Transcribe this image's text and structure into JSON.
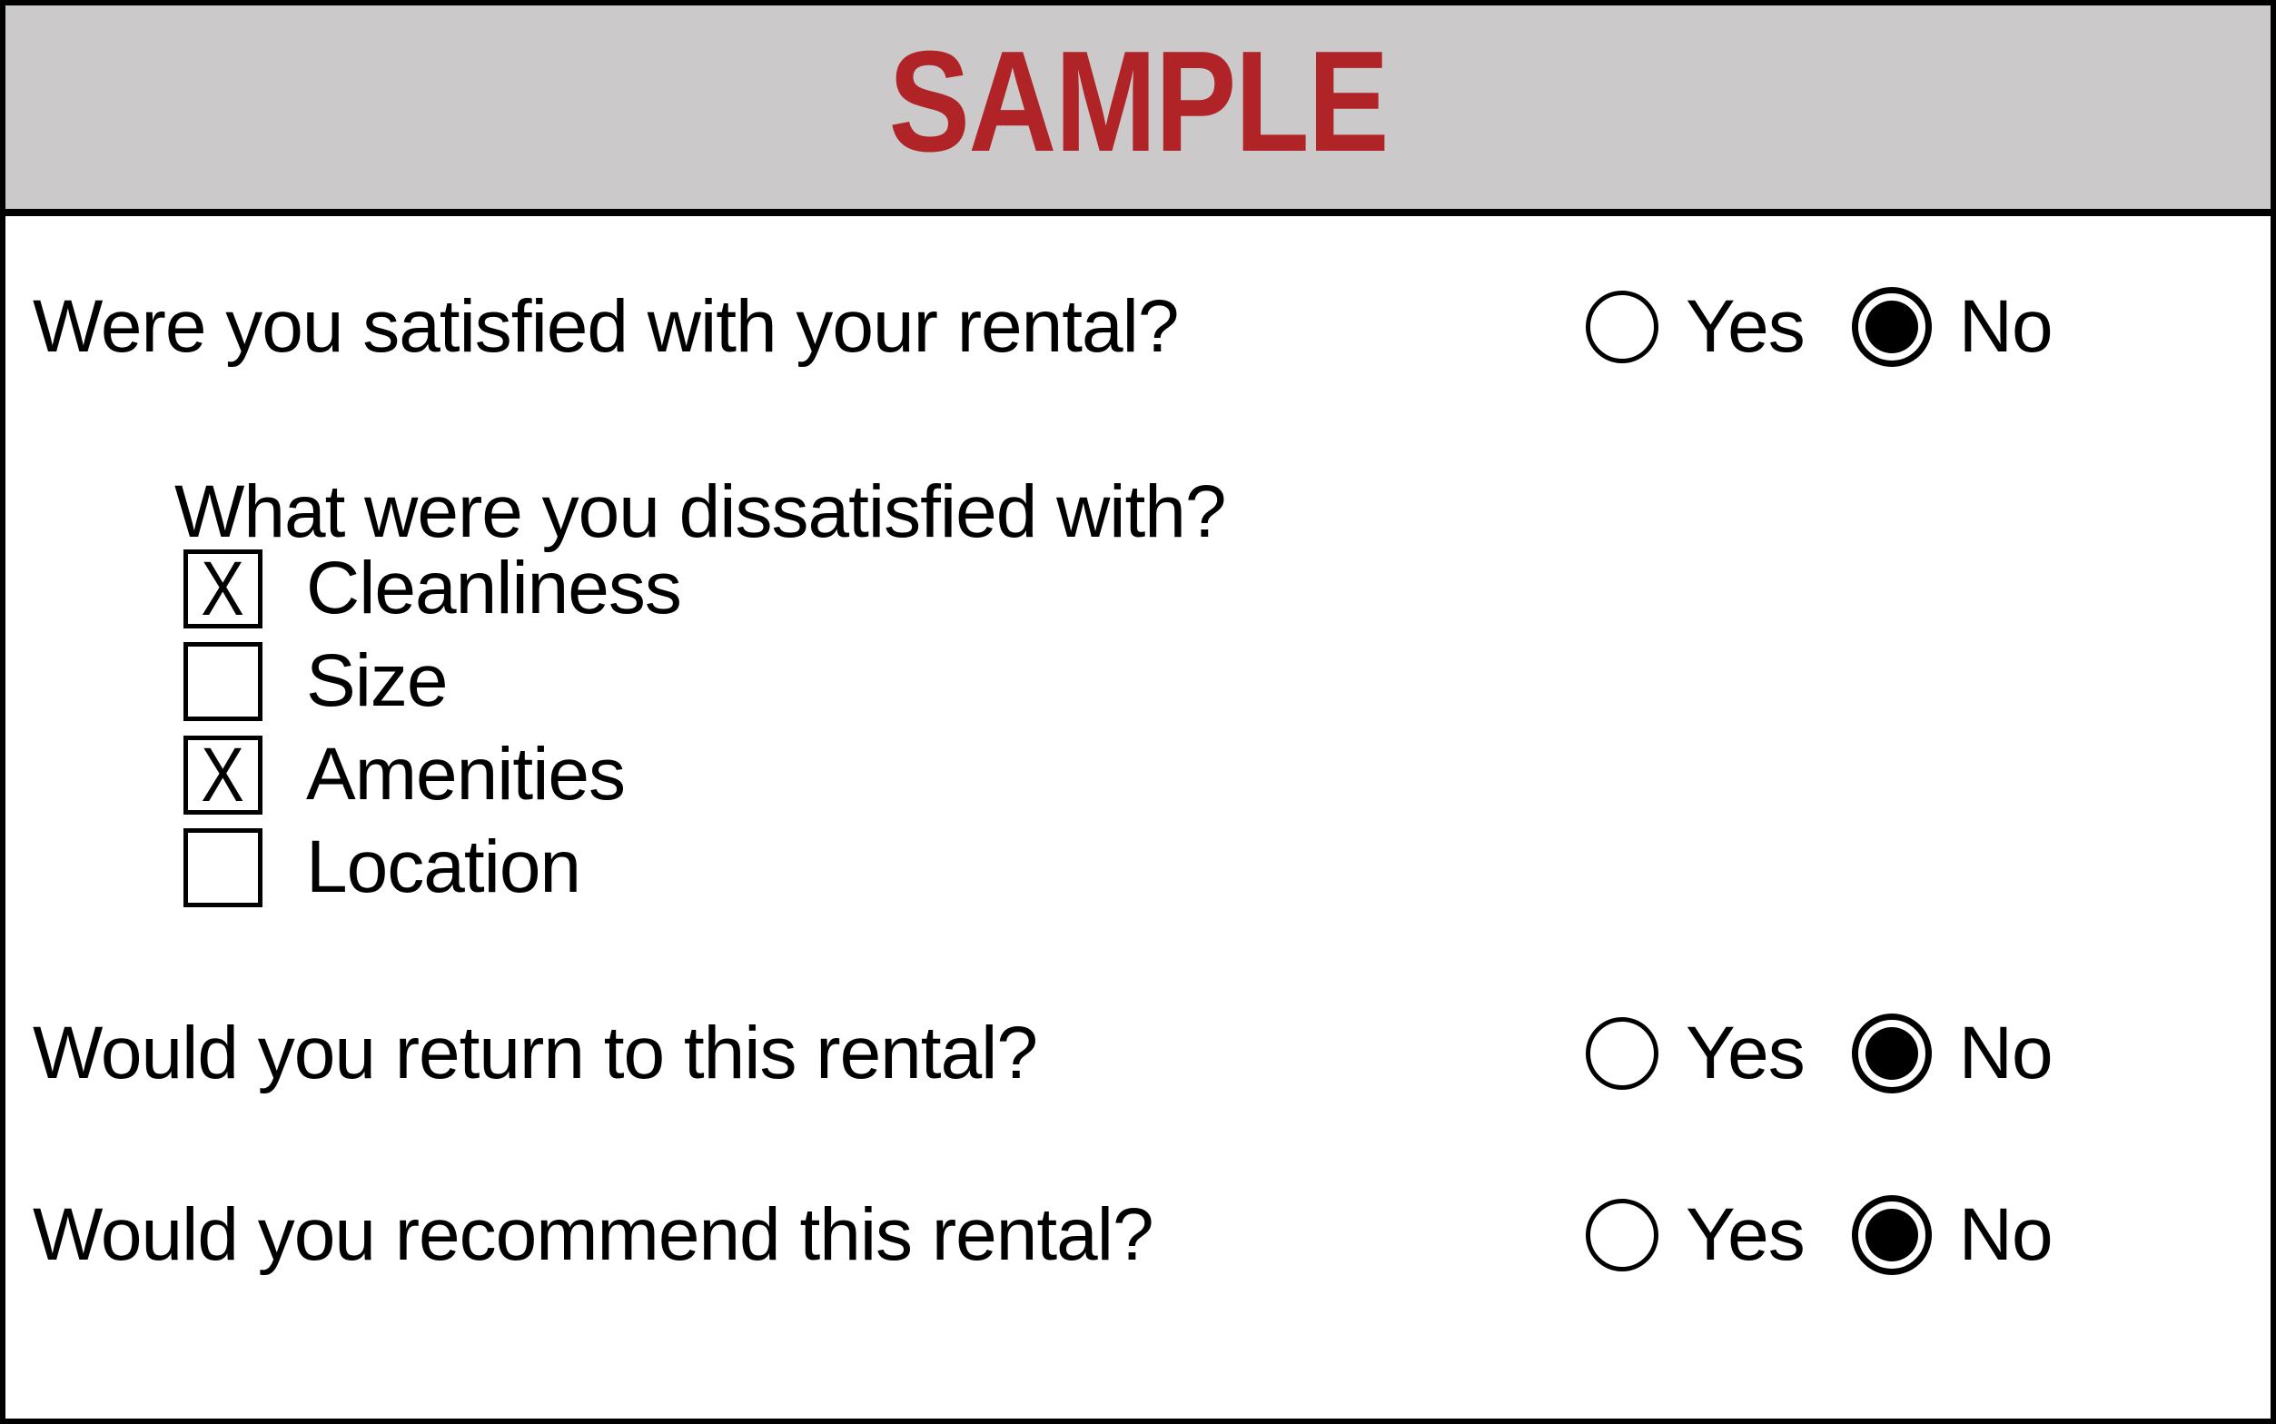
{
  "header": {
    "watermark": "SAMPLE"
  },
  "colors": {
    "banner_bg": "#CBC9C9",
    "banner_text": "#B02327",
    "ink": "#000000"
  },
  "questions": [
    {
      "label": "Were you satisfied with your rental?",
      "options": [
        {
          "label": "Yes",
          "selected": false
        },
        {
          "label": "No",
          "selected": true
        }
      ]
    },
    {
      "label": "Would you return to this rental?",
      "options": [
        {
          "label": "Yes",
          "selected": false
        },
        {
          "label": "No",
          "selected": true
        }
      ]
    },
    {
      "label": "Would you recommend this rental?",
      "options": [
        {
          "label": "Yes",
          "selected": false
        },
        {
          "label": "No",
          "selected": true
        }
      ]
    }
  ],
  "followup": {
    "label": "What were you dissatisfied with?",
    "checkboxes": [
      {
        "label": "Cleanliness",
        "checked": true,
        "mark": "X"
      },
      {
        "label": "Size",
        "checked": false,
        "mark": ""
      },
      {
        "label": "Amenities",
        "checked": true,
        "mark": "X"
      },
      {
        "label": "Location",
        "checked": false,
        "mark": ""
      }
    ]
  }
}
